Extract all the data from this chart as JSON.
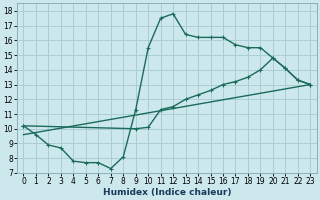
{
  "xlabel": "Humidex (Indice chaleur)",
  "bg_color": "#cce8ec",
  "line_color": "#1a6b5a",
  "grid_color": "#aacdd4",
  "xlim": [
    -0.5,
    23.5
  ],
  "ylim": [
    7,
    18.5
  ],
  "xticks": [
    0,
    1,
    2,
    3,
    4,
    5,
    6,
    7,
    8,
    9,
    10,
    11,
    12,
    13,
    14,
    15,
    16,
    17,
    18,
    19,
    20,
    21,
    22,
    23
  ],
  "yticks": [
    7,
    8,
    9,
    10,
    11,
    12,
    13,
    14,
    15,
    16,
    17,
    18
  ],
  "line1_x": [
    0,
    1,
    2,
    3,
    4,
    5,
    6,
    7,
    8,
    9,
    10,
    11,
    12,
    13,
    14,
    15,
    16,
    17,
    18,
    19,
    20,
    21,
    22,
    23
  ],
  "line1_y": [
    10.2,
    9.6,
    8.9,
    8.7,
    7.8,
    7.7,
    7.7,
    7.3,
    8.1,
    11.3,
    15.5,
    17.5,
    17.8,
    16.4,
    16.2,
    16.2,
    16.2,
    15.7,
    15.5,
    15.5,
    14.8,
    14.1,
    13.3,
    13.0
  ],
  "line2_x": [
    0,
    9,
    10,
    11,
    12,
    13,
    14,
    15,
    16,
    17,
    18,
    19,
    20,
    21,
    22,
    23
  ],
  "line2_y": [
    10.2,
    10.0,
    10.1,
    11.3,
    11.5,
    12.0,
    12.3,
    12.6,
    13.0,
    13.2,
    13.5,
    14.0,
    14.8,
    14.1,
    13.3,
    13.0
  ],
  "line3_x": [
    0,
    23
  ],
  "line3_y": [
    9.6,
    13.0
  ],
  "marker_size": 2.5,
  "linewidth": 1.0,
  "font_size": 6.5
}
